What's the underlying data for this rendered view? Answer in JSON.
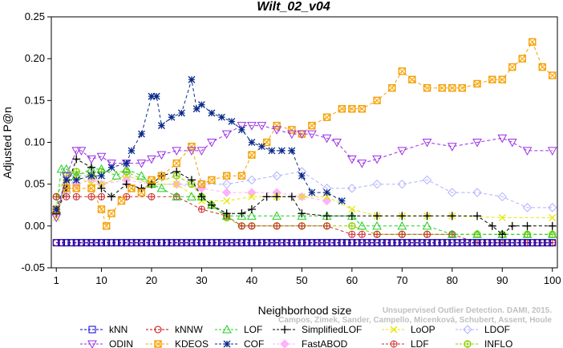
{
  "chart_data": {
    "type": "line",
    "title": "Wilt_02_v04",
    "xlabel": "Neighborhood size",
    "ylabel": "Adjusted P@n",
    "xlim": [
      0,
      101
    ],
    "ylim": [
      -0.05,
      0.25
    ],
    "xticks": [
      1,
      10,
      20,
      30,
      40,
      50,
      60,
      70,
      80,
      90,
      100
    ],
    "yticks": [
      -0.05,
      0.0,
      0.05,
      0.1,
      0.15,
      0.2,
      0.25
    ],
    "ytick_labels": [
      "-0.05",
      "0.00",
      "0.05",
      "0.10",
      "0.15",
      "0.20",
      "0.25"
    ],
    "legend_placement": "bottom",
    "credit": "Campos, Zimek, Sander, Campello, Micenková, Schubert, Assent, Houle",
    "credit_line1": "Unsupervised Outlier Detection. DAMI, 2015.",
    "series": [
      {
        "name": "kNN",
        "color": "#0000cc",
        "marker": "square",
        "x": [
          1,
          100
        ],
        "y": [
          -0.02,
          -0.02
        ],
        "dense": true
      },
      {
        "name": "kNNW",
        "color": "#cc0000",
        "marker": "circle",
        "x": [
          1,
          100
        ],
        "y": [
          -0.02,
          -0.02
        ],
        "dense": true
      },
      {
        "name": "LOF",
        "color": "#22cc22",
        "marker": "triangle",
        "x": [
          1,
          2,
          3,
          5,
          8,
          10,
          13,
          15,
          18,
          20,
          22,
          25,
          28,
          30,
          32,
          35,
          38,
          40,
          45,
          50,
          55,
          60,
          62,
          65,
          70,
          75,
          80,
          85,
          90,
          95,
          100
        ],
        "y": [
          0.02,
          0.068,
          0.068,
          0.06,
          0.068,
          0.068,
          0.06,
          0.068,
          0.06,
          0.05,
          0.045,
          0.035,
          0.035,
          0.035,
          0.025,
          0.012,
          0.012,
          0.012,
          0.012,
          0.012,
          0.012,
          0.012,
          0.0,
          0.0,
          0.0,
          0.0,
          -0.01,
          -0.01,
          -0.01,
          -0.01,
          -0.01
        ]
      },
      {
        "name": "SimplifiedLOF",
        "color": "#000000",
        "marker": "plus",
        "x": [
          1,
          3,
          5,
          8,
          10,
          12,
          15,
          18,
          20,
          22,
          25,
          28,
          30,
          32,
          35,
          38,
          40,
          43,
          45,
          48,
          50,
          55,
          60,
          65,
          70,
          75,
          80,
          85,
          88,
          90,
          92,
          95,
          100
        ],
        "y": [
          0.015,
          0.045,
          0.08,
          0.07,
          0.045,
          0.035,
          0.05,
          0.045,
          0.05,
          0.06,
          0.065,
          0.055,
          0.035,
          0.025,
          0.015,
          0.015,
          0.02,
          0.035,
          0.035,
          0.035,
          0.015,
          0.012,
          0.012,
          0.012,
          0.012,
          0.012,
          0.012,
          0.012,
          0.0,
          -0.01,
          0.0,
          0.0,
          0.0
        ]
      },
      {
        "name": "LoOP",
        "color": "#e6e600",
        "marker": "cross",
        "x": [
          1,
          3,
          5,
          8,
          10,
          15,
          20,
          25,
          30,
          35,
          40,
          45,
          50,
          55,
          60,
          65,
          70,
          75,
          80,
          90,
          100
        ],
        "y": [
          0.01,
          0.05,
          0.06,
          0.05,
          0.05,
          0.06,
          0.05,
          0.05,
          0.03,
          0.03,
          0.035,
          0.035,
          0.035,
          0.035,
          0.02,
          0.012,
          0.012,
          0.012,
          0.012,
          0.01,
          0.01
        ]
      },
      {
        "name": "LDOF",
        "color": "#b0b0ff",
        "marker": "diamond",
        "x": [
          1,
          3,
          5,
          8,
          10,
          15,
          20,
          25,
          30,
          35,
          40,
          45,
          50,
          55,
          60,
          65,
          70,
          75,
          80,
          85,
          90,
          95,
          100
        ],
        "y": [
          0.015,
          0.04,
          0.06,
          0.06,
          0.05,
          0.06,
          0.05,
          0.05,
          0.05,
          0.05,
          0.055,
          0.06,
          0.065,
          0.045,
          0.045,
          0.05,
          0.05,
          0.055,
          0.04,
          0.04,
          0.035,
          0.022,
          0.022
        ]
      },
      {
        "name": "ODIN",
        "color": "#9a2ee6",
        "marker": "triangle-down",
        "x": [
          1,
          3,
          5,
          6,
          8,
          10,
          12,
          15,
          18,
          20,
          22,
          25,
          28,
          30,
          32,
          35,
          38,
          40,
          42,
          45,
          48,
          50,
          52,
          55,
          57,
          60,
          62,
          65,
          70,
          75,
          80,
          85,
          90,
          92,
          95,
          100
        ],
        "y": [
          0.01,
          0.06,
          0.09,
          0.09,
          0.08,
          0.083,
          0.075,
          0.075,
          0.075,
          0.08,
          0.085,
          0.09,
          0.09,
          0.09,
          0.1,
          0.11,
          0.12,
          0.12,
          0.12,
          0.115,
          0.11,
          0.11,
          0.11,
          0.105,
          0.1,
          0.08,
          0.075,
          0.08,
          0.09,
          0.1,
          0.095,
          0.1,
          0.105,
          0.1,
          0.09,
          0.09
        ]
      },
      {
        "name": "KDEOS",
        "color": "#f5a000",
        "marker": "square-x",
        "x": [
          1,
          3,
          5,
          8,
          10,
          11,
          12,
          14,
          16,
          18,
          20,
          22,
          25,
          28,
          30,
          32,
          35,
          38,
          40,
          43,
          45,
          48,
          50,
          52,
          55,
          58,
          60,
          62,
          65,
          68,
          70,
          72,
          75,
          78,
          80,
          82,
          85,
          88,
          90,
          92,
          94,
          96,
          98,
          100
        ],
        "y": [
          0.02,
          0.045,
          0.045,
          0.045,
          0.02,
          0.0,
          0.015,
          0.03,
          0.045,
          0.04,
          0.055,
          0.06,
          0.075,
          0.095,
          0.05,
          0.055,
          0.06,
          0.06,
          0.085,
          0.1,
          0.12,
          0.115,
          0.11,
          0.12,
          0.13,
          0.14,
          0.14,
          0.14,
          0.15,
          0.165,
          0.185,
          0.175,
          0.165,
          0.165,
          0.165,
          0.165,
          0.17,
          0.175,
          0.175,
          0.19,
          0.2,
          0.22,
          0.19,
          0.18
        ]
      },
      {
        "name": "COF",
        "color": "#0a2a8a",
        "marker": "star",
        "x": [
          1,
          3,
          5,
          8,
          10,
          12,
          15,
          16,
          18,
          20,
          21,
          22,
          24,
          26,
          28,
          29,
          30,
          32,
          34,
          36,
          38,
          40,
          42,
          44,
          46,
          48,
          50,
          52,
          55,
          58
        ],
        "y": [
          0.02,
          0.055,
          0.055,
          0.06,
          0.06,
          0.07,
          0.075,
          0.09,
          0.11,
          0.155,
          0.155,
          0.12,
          0.13,
          0.135,
          0.175,
          0.14,
          0.145,
          0.135,
          0.13,
          0.125,
          0.115,
          0.1,
          0.095,
          0.09,
          0.09,
          0.09,
          0.06,
          0.04,
          0.04,
          0.03
        ]
      },
      {
        "name": "FastABOD",
        "color": "#ffb0ff",
        "marker": "diamond-filled",
        "x": [
          1,
          3,
          5,
          8,
          10,
          15,
          20,
          25,
          30,
          35,
          40,
          45,
          50,
          55
        ],
        "y": [
          0.02,
          0.05,
          0.05,
          0.055,
          0.05,
          0.055,
          0.05,
          0.05,
          0.045,
          0.04,
          0.04,
          0.04,
          0.035,
          0.03
        ]
      },
      {
        "name": "LDF",
        "color": "#cc2a2a",
        "marker": "circle-plus",
        "x": [
          1,
          3,
          5,
          8,
          10,
          15,
          20,
          25,
          30,
          35,
          38,
          40,
          45,
          50,
          55,
          60,
          62,
          65,
          70,
          75,
          80,
          85,
          90,
          95,
          100
        ],
        "y": [
          0.035,
          0.035,
          0.035,
          0.035,
          0.035,
          0.035,
          0.035,
          0.035,
          0.02,
          0.012,
          0.0,
          0.0,
          0.0,
          0.0,
          0.0,
          -0.01,
          -0.01,
          -0.01,
          -0.01,
          -0.01,
          -0.01,
          -0.02,
          -0.02,
          -0.02,
          -0.02
        ]
      },
      {
        "name": "INFLO",
        "color": "#8ad000",
        "marker": "octagon",
        "x": [
          1,
          3,
          5,
          8,
          10,
          15,
          20,
          25,
          28,
          30,
          32,
          35,
          38,
          40,
          45,
          50,
          55,
          60,
          65,
          70,
          75,
          80,
          85,
          90,
          95,
          100
        ],
        "y": [
          0.035,
          0.06,
          0.065,
          0.06,
          0.065,
          0.065,
          0.05,
          0.06,
          0.05,
          0.035,
          0.025,
          0.01,
          0.0,
          0.0,
          0.0,
          0.0,
          0.0,
          0.0,
          -0.01,
          -0.01,
          -0.01,
          -0.01,
          -0.01,
          -0.01,
          -0.01,
          -0.01
        ]
      }
    ]
  }
}
